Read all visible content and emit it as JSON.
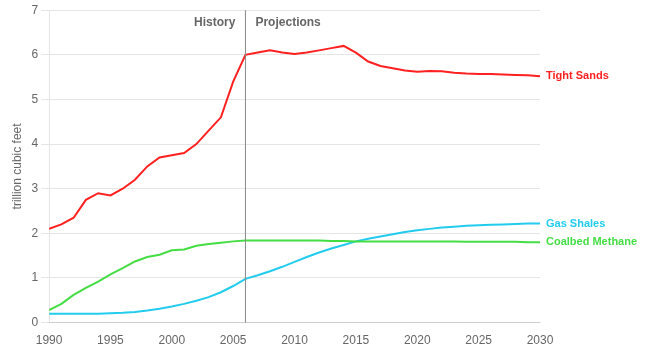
{
  "chart_data": {
    "type": "line",
    "ylabel": "trillion cubic feet",
    "x": [
      1990,
      1991,
      1992,
      1993,
      1994,
      1995,
      1996,
      1997,
      1998,
      1999,
      2000,
      2001,
      2002,
      2003,
      2004,
      2005,
      2006,
      2007,
      2008,
      2009,
      2010,
      2011,
      2012,
      2013,
      2014,
      2015,
      2016,
      2017,
      2018,
      2019,
      2020,
      2021,
      2022,
      2023,
      2024,
      2025,
      2026,
      2027,
      2028,
      2029,
      2030
    ],
    "series": [
      {
        "name": "Tight Sands",
        "color": "#ff2020",
        "values": [
          2.1,
          2.2,
          2.35,
          2.75,
          2.9,
          2.85,
          3.0,
          3.2,
          3.5,
          3.7,
          3.75,
          3.8,
          4.0,
          4.3,
          4.6,
          5.4,
          6.0,
          6.05,
          6.1,
          6.05,
          6.02,
          6.05,
          6.1,
          6.15,
          6.2,
          6.05,
          5.85,
          5.75,
          5.7,
          5.65,
          5.62,
          5.64,
          5.63,
          5.6,
          5.58,
          5.57,
          5.57,
          5.56,
          5.55,
          5.54,
          5.52
        ]
      },
      {
        "name": "Coalbed Methane",
        "color": "#44dd44",
        "values": [
          0.28,
          0.42,
          0.62,
          0.78,
          0.92,
          1.08,
          1.22,
          1.37,
          1.47,
          1.52,
          1.62,
          1.64,
          1.72,
          1.76,
          1.79,
          1.82,
          1.84,
          1.84,
          1.84,
          1.84,
          1.84,
          1.84,
          1.84,
          1.83,
          1.83,
          1.82,
          1.82,
          1.82,
          1.82,
          1.82,
          1.82,
          1.82,
          1.82,
          1.82,
          1.81,
          1.81,
          1.81,
          1.81,
          1.81,
          1.8,
          1.8
        ]
      },
      {
        "name": "Gas Shales",
        "color": "#22ccee",
        "values": [
          0.2,
          0.2,
          0.2,
          0.2,
          0.2,
          0.21,
          0.22,
          0.24,
          0.27,
          0.31,
          0.36,
          0.42,
          0.49,
          0.57,
          0.68,
          0.82,
          0.98,
          1.06,
          1.15,
          1.25,
          1.36,
          1.47,
          1.57,
          1.66,
          1.74,
          1.82,
          1.88,
          1.93,
          1.98,
          2.03,
          2.07,
          2.1,
          2.13,
          2.15,
          2.17,
          2.18,
          2.19,
          2.2,
          2.21,
          2.22,
          2.22
        ]
      }
    ],
    "xlim": [
      1990,
      2030
    ],
    "xticks": [
      1990,
      1995,
      2000,
      2005,
      2010,
      2015,
      2020,
      2025,
      2030
    ],
    "ylim": [
      0,
      7
    ],
    "yticks": [
      0,
      1,
      2,
      3,
      4,
      5,
      6,
      7
    ],
    "grid": true,
    "vline": 2006,
    "region_labels": [
      "History",
      "Projections"
    ]
  }
}
